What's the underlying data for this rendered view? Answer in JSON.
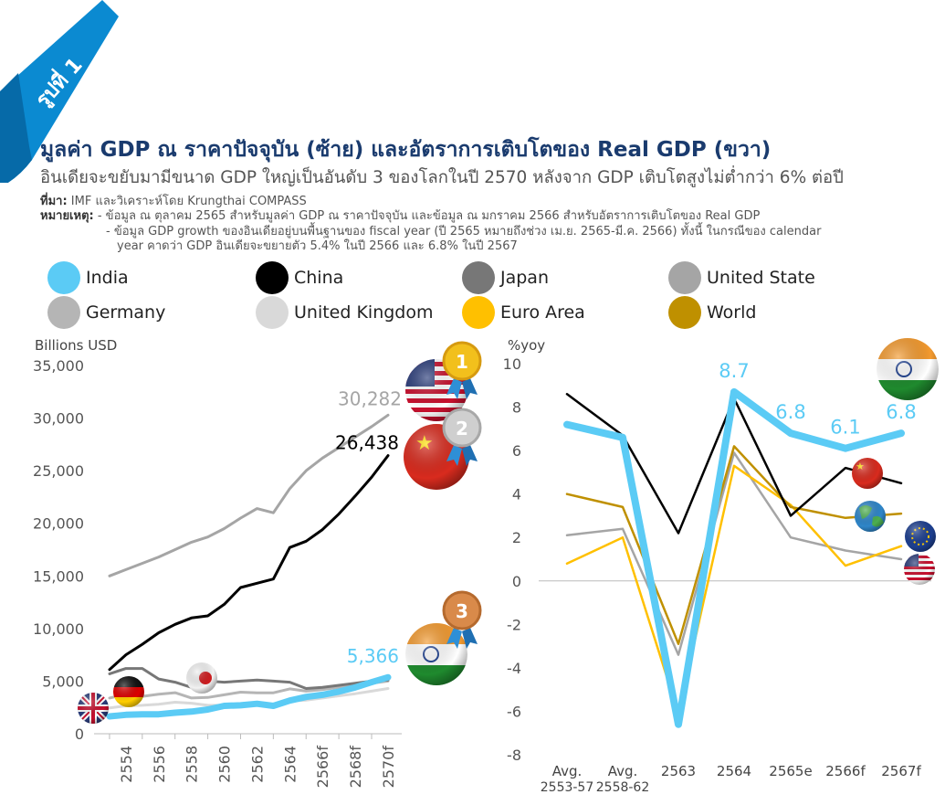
{
  "figure_badge": "รูปที่ 1",
  "title": {
    "main": "มูลค่า GDP ณ ราคาปัจจุบัน (ซ้าย) และอัตราการเติบโตของ Real GDP (ขวา)",
    "subtitle": "อินเดียจะขยับมามีขนาด GDP ใหญ่เป็นอันดับ 3 ของโลกในปี 2570 หลังจาก GDP เติบโตสูงไม่ต่ำกว่า 6% ต่อปี"
  },
  "source": {
    "label": "ที่มา:",
    "text": "IMF และวิเคราะห์โดย Krungthai COMPASS"
  },
  "notes": {
    "label": "หมายเหตุ:",
    "line1": "- ข้อมูล ณ ตุลาคม 2565 สำหรับมูลค่า GDP ณ ราคาปัจจุบัน และข้อมูล ณ มกราคม 2566 สำหรับอัตราการเติบโตของ Real GDP",
    "line2": "- ข้อมูล GDP growth ของอินเดียอยู่บนพื้นฐานของ fiscal year (ปี 2565 หมายถึงช่วง เม.ย. 2565-มี.ค. 2566) ทั้งนี้ ในกรณีของ calendar",
    "line3": "year คาดว่า GDP อินเดียจะขยายตัว 5.4% ในปี 2566 และ 6.8% ในปี 2567"
  },
  "legend": [
    {
      "label": "India",
      "color": "#5bcbf5"
    },
    {
      "label": "China",
      "color": "#000000"
    },
    {
      "label": "Japan",
      "color": "#777777"
    },
    {
      "label": "United State",
      "color": "#a5a5a5"
    },
    {
      "label": "Germany",
      "color": "#b5b5b5"
    },
    {
      "label": "United Kingdom",
      "color": "#d9d9d9"
    },
    {
      "label": "Euro Area",
      "color": "#ffc000"
    },
    {
      "label": "World",
      "color": "#bf9000"
    }
  ],
  "medals": [
    "1",
    "2",
    "3"
  ],
  "chart_data": [
    {
      "type": "line",
      "title": "มูลค่า GDP ณ ราคาปัจจุบัน",
      "ylabel": "Billions USD",
      "ylim": [
        0,
        35000
      ],
      "yticks": [
        "35,000",
        "30,000",
        "25,000",
        "20,000",
        "15,000",
        "10,000",
        "5,000",
        "0"
      ],
      "x": [
        2553,
        2554,
        2555,
        2556,
        2557,
        2558,
        2559,
        2560,
        2561,
        2562,
        2563,
        2564,
        2565,
        2566,
        2567,
        2568,
        2569,
        2570
      ],
      "xticks": [
        "2554",
        "2556",
        "2558",
        "2560",
        "2562",
        "2564",
        "2566f",
        "2568f",
        "2570f"
      ],
      "series": [
        {
          "name": "United State",
          "color": "#a5a5a5",
          "values": [
            15000,
            15600,
            16200,
            16800,
            17500,
            18200,
            18700,
            19500,
            20500,
            21400,
            21000,
            23300,
            25000,
            26200,
            27200,
            28200,
            29200,
            30282
          ]
        },
        {
          "name": "China",
          "color": "#000000",
          "values": [
            6100,
            7500,
            8500,
            9600,
            10400,
            11000,
            11200,
            12300,
            13900,
            14300,
            14700,
            17700,
            18300,
            19400,
            20900,
            22600,
            24400,
            26438
          ]
        },
        {
          "name": "Japan",
          "color": "#777777",
          "values": [
            5700,
            6200,
            6200,
            5200,
            4900,
            4400,
            5000,
            4900,
            5000,
            5100,
            5000,
            4900,
            4300,
            4400,
            4600,
            4800,
            5000,
            5100
          ]
        },
        {
          "name": "Germany",
          "color": "#b5b5b5",
          "values": [
            3400,
            3750,
            3550,
            3750,
            3900,
            3400,
            3450,
            3700,
            3950,
            3880,
            3890,
            4260,
            4050,
            4200,
            4400,
            4600,
            4800,
            5000
          ]
        },
        {
          "name": "United Kingdom",
          "color": "#d9d9d9",
          "values": [
            2450,
            2650,
            2700,
            2800,
            3000,
            2900,
            2700,
            2700,
            2850,
            2850,
            2700,
            3100,
            3200,
            3400,
            3600,
            3800,
            4050,
            4300
          ]
        },
        {
          "name": "India",
          "color": "#5bcbf5",
          "values": [
            1650,
            1800,
            1850,
            1850,
            2000,
            2100,
            2300,
            2650,
            2700,
            2850,
            2650,
            3150,
            3500,
            3700,
            4000,
            4400,
            4900,
            5366
          ]
        }
      ],
      "data_labels": [
        {
          "series": "United State",
          "text": "30,282"
        },
        {
          "series": "China",
          "text": "26,438"
        },
        {
          "series": "India",
          "text": "5,366"
        }
      ]
    },
    {
      "type": "line",
      "title": "อัตราการเติบโตของ Real GDP",
      "ylabel": "%yoy",
      "ylim": [
        -8,
        10
      ],
      "yticks": [
        "10",
        "8",
        "6",
        "4",
        "2",
        "0",
        "-2",
        "-4",
        "-6",
        "-8"
      ],
      "categories": [
        "Avg. 2553-57",
        "Avg. 2558-62",
        "2563",
        "2564",
        "2565e",
        "2566f",
        "2567f"
      ],
      "xticks_line1": [
        "Avg.",
        "Avg.",
        "2563",
        "2564",
        "2565e",
        "2566f",
        "2567f"
      ],
      "xticks_line2": [
        "2553-57",
        "2558-62",
        "",
        "",
        "",
        "",
        ""
      ],
      "series": [
        {
          "name": "China",
          "color": "#000000",
          "values": [
            8.6,
            6.7,
            2.2,
            8.4,
            3.0,
            5.2,
            4.5
          ]
        },
        {
          "name": "World",
          "color": "#bf9000",
          "values": [
            4.0,
            3.4,
            -2.9,
            6.2,
            3.4,
            2.9,
            3.1
          ]
        },
        {
          "name": "United State",
          "color": "#a5a5a5",
          "values": [
            2.1,
            2.4,
            -3.4,
            5.9,
            2.0,
            1.4,
            1.0
          ]
        },
        {
          "name": "Euro Area",
          "color": "#ffc000",
          "values": [
            0.8,
            2.0,
            -6.1,
            5.3,
            3.5,
            0.7,
            1.6
          ]
        },
        {
          "name": "India",
          "color": "#5bcbf5",
          "values": [
            7.2,
            6.6,
            -6.6,
            8.7,
            6.8,
            6.1,
            6.8
          ]
        }
      ],
      "data_labels": [
        "8.7",
        "6.8",
        "6.1",
        "6.8"
      ]
    }
  ]
}
